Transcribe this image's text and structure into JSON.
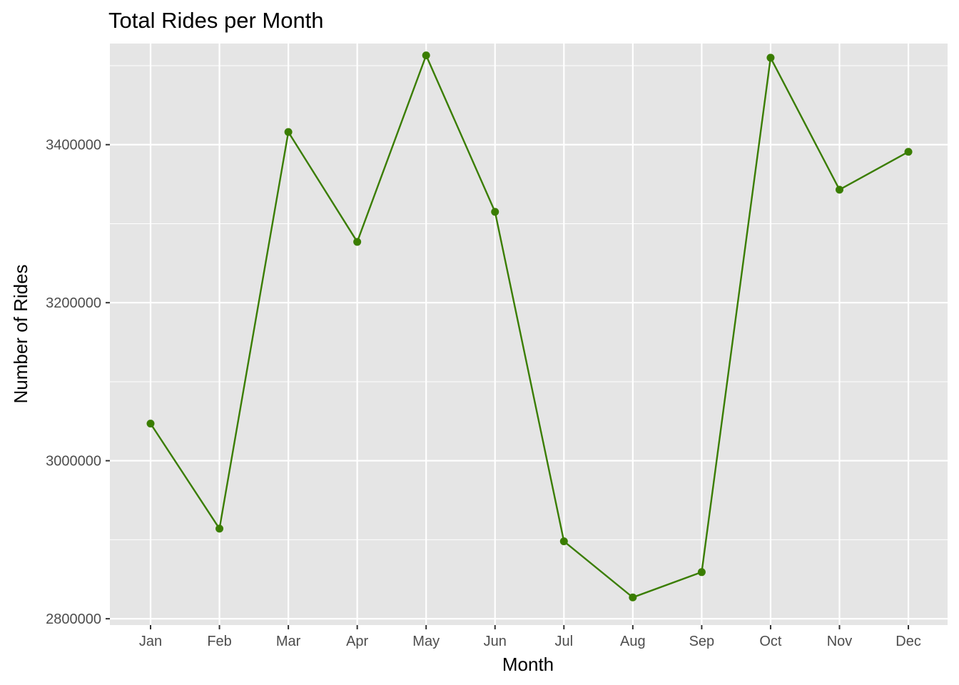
{
  "chart_data": {
    "type": "line",
    "title": "Total Rides per Month",
    "xlabel": "Month",
    "ylabel": "Number of Rides",
    "categories": [
      "Jan",
      "Feb",
      "Mar",
      "Apr",
      "May",
      "Jun",
      "Jul",
      "Aug",
      "Sep",
      "Oct",
      "Nov",
      "Dec"
    ],
    "series": [
      {
        "values": [
          3047000,
          2914000,
          3416000,
          3277000,
          3513000,
          3315000,
          2898000,
          2827000,
          2859000,
          3510000,
          3343000,
          3391000
        ]
      }
    ],
    "ylim": [
      2792000,
      3528000
    ],
    "yticks": [
      2800000,
      3000000,
      3200000,
      3400000
    ],
    "yticks_minor": [
      2900000,
      3100000,
      3300000,
      3500000
    ],
    "grid": true,
    "colors": {
      "line": "#3a7d00",
      "panel_background": "#e5e5e5",
      "grid": "#ffffff",
      "tick_text": "#4d4d4d"
    }
  }
}
